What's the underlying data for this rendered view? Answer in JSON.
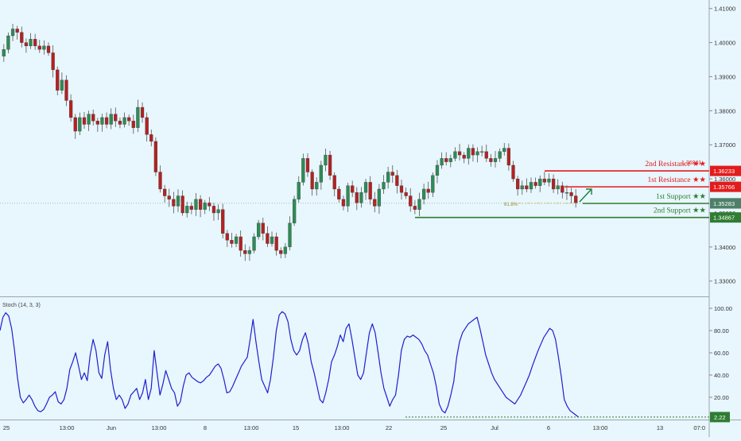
{
  "chart_data": [
    {
      "type": "candlestick",
      "title": "",
      "symbol": "",
      "ylim": [
        1.3255,
        1.4125
      ],
      "y_ticks": [
        "1.41000",
        "1.40000",
        "1.39000",
        "1.38000",
        "1.37000",
        "1.36000",
        "1.35000",
        "1.34000",
        "1.33000"
      ],
      "x_ticks": [
        "25",
        "13:00",
        "Jun",
        "13:00",
        "8",
        "13:00",
        "15",
        "13:00",
        "22",
        "25",
        "Jul",
        "6",
        "13:00",
        "13",
        "07:0"
      ],
      "current_price": "1.35283",
      "horizontal_levels": [
        {
          "name": "2nd Resistance",
          "stars": "★★",
          "value": 1.36233,
          "label": "1.36233",
          "color": "#e31b1b"
        },
        {
          "name": "1st Resistance",
          "stars": "★★",
          "value": 1.35766,
          "label": "1.35766",
          "color": "#e31b1b"
        },
        {
          "name": "1st Support",
          "stars": "★★",
          "value": 1.35279,
          "label": "1.35279",
          "color": "#2e7d32"
        },
        {
          "name": "2nd Support",
          "stars": "★★",
          "value": 1.34867,
          "label": "1.34867",
          "color": "#2e7d32"
        }
      ],
      "fib_label": "61.8%",
      "hidden_price_label": "1.36841",
      "arrow": "up",
      "price_path": [
        1.396,
        1.398,
        1.402,
        1.404,
        1.403,
        1.4,
        1.399,
        1.401,
        1.399,
        1.398,
        1.399,
        1.397,
        1.392,
        1.386,
        1.389,
        1.383,
        1.378,
        1.374,
        1.378,
        1.376,
        1.379,
        1.377,
        1.376,
        1.378,
        1.376,
        1.379,
        1.377,
        1.376,
        1.378,
        1.377,
        1.375,
        1.381,
        1.378,
        1.373,
        1.371,
        1.362,
        1.357,
        1.355,
        1.354,
        1.352,
        1.355,
        1.35,
        1.352,
        1.351,
        1.354,
        1.351,
        1.353,
        1.352,
        1.35,
        1.351,
        1.344,
        1.342,
        1.341,
        1.343,
        1.339,
        1.338,
        1.339,
        1.343,
        1.347,
        1.344,
        1.341,
        1.343,
        1.339,
        1.338,
        1.34,
        1.347,
        1.354,
        1.359,
        1.366,
        1.362,
        1.357,
        1.359,
        1.364,
        1.367,
        1.361,
        1.357,
        1.354,
        1.352,
        1.358,
        1.356,
        1.353,
        1.356,
        1.359,
        1.354,
        1.352,
        1.357,
        1.359,
        1.362,
        1.361,
        1.358,
        1.356,
        1.355,
        1.352,
        1.351,
        1.354,
        1.357,
        1.356,
        1.361,
        1.364,
        1.366,
        1.365,
        1.366,
        1.368,
        1.367,
        1.366,
        1.369,
        1.367,
        1.368,
        1.368,
        1.366,
        1.365,
        1.366,
        1.368,
        1.369,
        1.364,
        1.36,
        1.357,
        1.358,
        1.357,
        1.359,
        1.358,
        1.36,
        1.359,
        1.36,
        1.357,
        1.358,
        1.356,
        1.356,
        1.355,
        1.353
      ],
      "series": [
        {
          "name": "",
          "color": "#2b2b2b"
        }
      ]
    },
    {
      "type": "line",
      "title": "",
      "indicator_label": "Stoch (14, 3, 3)",
      "ylim": [
        0,
        110
      ],
      "y_ticks": [
        "100.00",
        "80.00",
        "60.00",
        "40.00",
        "20.00"
      ],
      "current_value": "2.22",
      "dotted_level": 2.22,
      "series": [
        {
          "name": "",
          "color": "#1f1fcf",
          "y": [
            80,
            92,
            96,
            93,
            82,
            62,
            38,
            20,
            15,
            18,
            22,
            18,
            12,
            8,
            7,
            9,
            14,
            20,
            22,
            25,
            16,
            14,
            18,
            28,
            45,
            52,
            60,
            48,
            36,
            42,
            35,
            58,
            72,
            62,
            42,
            37,
            58,
            70,
            45,
            28,
            18,
            22,
            18,
            10,
            14,
            22,
            25,
            28,
            18,
            24,
            36,
            18,
            28,
            62,
            42,
            22,
            32,
            44,
            36,
            28,
            24,
            12,
            16,
            30,
            40,
            42,
            38,
            36,
            34,
            33,
            35,
            38,
            40,
            44,
            48,
            50,
            46,
            36,
            24,
            25,
            30,
            36,
            42,
            48,
            52,
            56,
            72,
            90,
            70,
            52,
            36,
            30,
            24,
            36,
            56,
            80,
            94,
            97,
            95,
            88,
            72,
            62,
            58,
            62,
            72,
            78,
            68,
            52,
            42,
            30,
            18,
            15,
            24,
            36,
            52,
            58,
            66,
            76,
            70,
            82,
            86,
            72,
            56,
            40,
            36,
            42,
            60,
            78,
            86,
            78,
            60,
            42,
            28,
            20,
            12,
            18,
            22,
            40,
            62,
            72,
            75,
            74,
            76,
            74,
            72,
            68,
            62,
            58,
            50,
            42,
            30,
            14,
            8,
            6,
            12,
            22,
            34,
            56,
            70,
            78,
            82,
            86,
            88,
            90,
            92,
            82,
            70,
            58,
            50,
            42,
            36,
            32,
            28,
            24,
            20,
            18,
            16,
            14,
            18,
            22,
            28,
            34,
            40,
            48,
            55,
            62,
            68,
            74,
            78,
            82,
            80,
            72,
            56,
            38,
            18,
            12,
            8,
            6,
            4,
            2
          ],
          "values_note": ""
        }
      ]
    }
  ]
}
